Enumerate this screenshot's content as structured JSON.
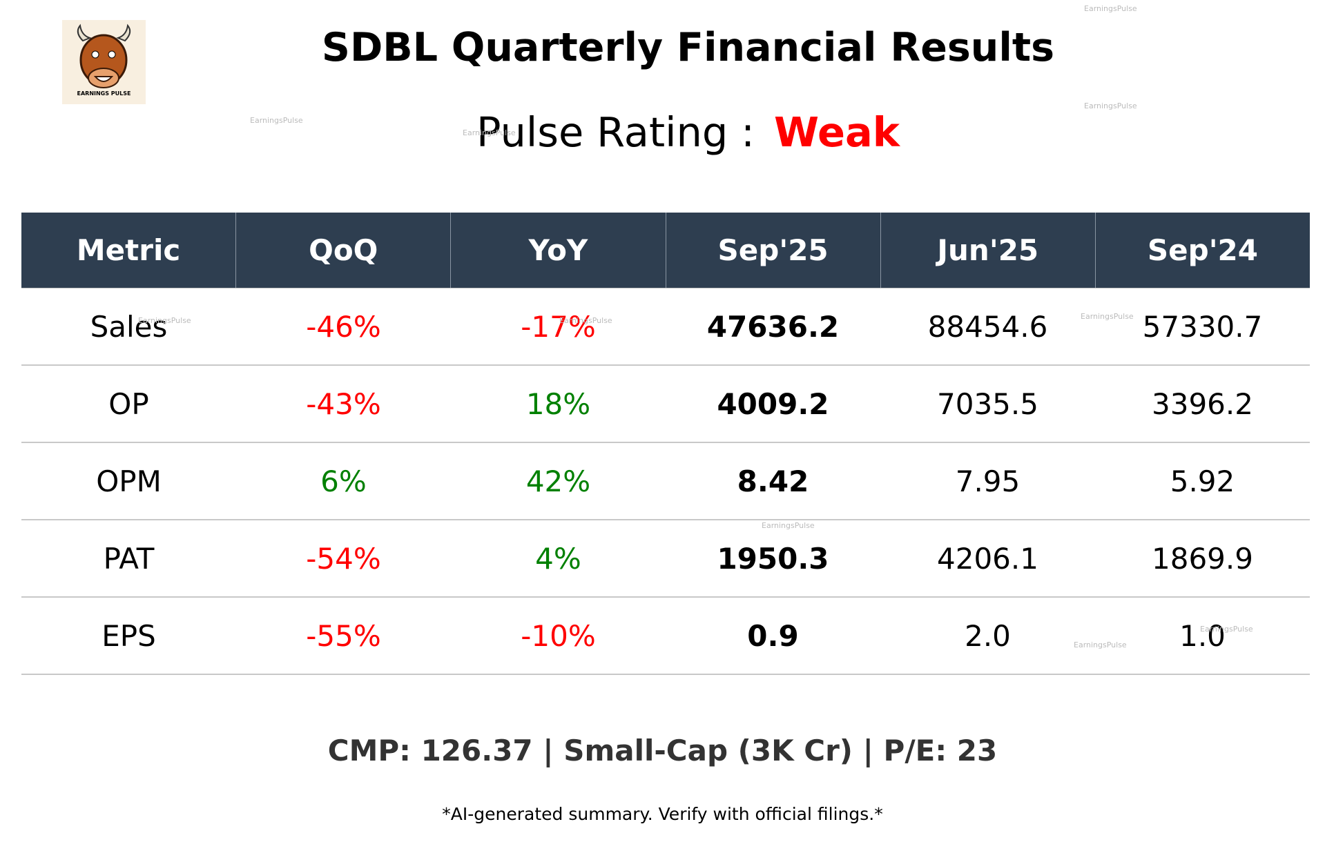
{
  "header": {
    "title": "SDBL Quarterly Financial Results",
    "rating_label": "Pulse Rating :",
    "rating": "Weak",
    "logo_text": "EARNINGS PULSE"
  },
  "table": {
    "columns": [
      "Metric",
      "QoQ",
      "YoY",
      "Sep'25",
      "Jun'25",
      "Sep'24"
    ],
    "rows": [
      [
        "Sales",
        "-46%",
        "-17%",
        "47636.2",
        "88454.6",
        "57330.7"
      ],
      [
        "OP",
        "-43%",
        "18%",
        "4009.2",
        "7035.5",
        "3396.2"
      ],
      [
        "OPM",
        "6%",
        "42%",
        "8.42",
        "7.95",
        "5.92"
      ],
      [
        "PAT",
        "-54%",
        "4%",
        "1950.3",
        "4206.1",
        "1869.9"
      ],
      [
        "EPS",
        "-55%",
        "-10%",
        "0.9",
        "2.0",
        "1.0"
      ]
    ],
    "negative_color": "#ff0000",
    "positive_color": "#008000"
  },
  "footer": {
    "summary": "CMP: 126.37 | Small-Cap (3K Cr) | P/E: 23",
    "disclaimer": "*AI-generated summary. Verify with official filings.*"
  },
  "watermarks": [
    "EarningsPulse",
    "EarningsPulse",
    "EarningsPulse",
    "EarningsPulse",
    "EarningsPulse",
    "EarningsPulse",
    "EarningsPulse",
    "EarningsPulse",
    "EarningsPulse",
    "EarningsPulse"
  ]
}
